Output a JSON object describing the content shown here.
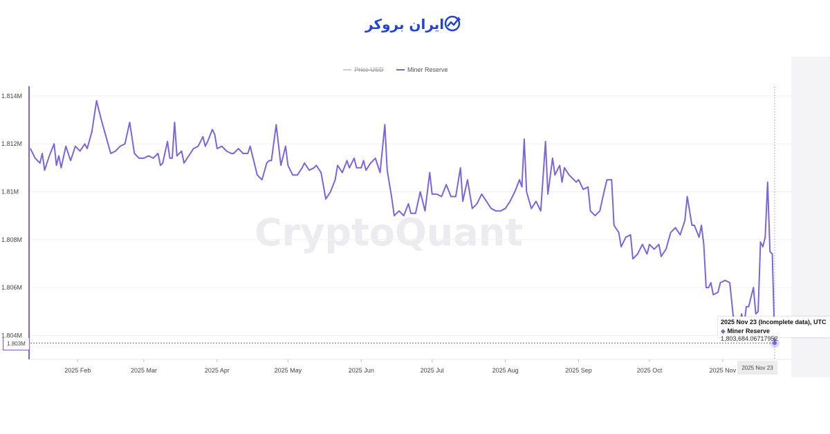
{
  "logo": {
    "text": "ایران بروکر",
    "brand_color": "#2343d6"
  },
  "watermark": "CryptoQuant",
  "legend": [
    {
      "name": "Price USD",
      "color": "#cccccc",
      "enabled": false
    },
    {
      "name": "Miner Reserve",
      "color": "#7b64dc",
      "enabled": true
    }
  ],
  "tooltip": {
    "title": "2025 Nov 23 (Incomplete data), UTC",
    "series_label": "Miner Reserve",
    "value": "1,803,684.06717952"
  },
  "crosshair": {
    "x_label": "2025 Nov 23",
    "y_label": "1.803M"
  },
  "chart_data": {
    "type": "line",
    "ylim": [
      1803000,
      1814400
    ],
    "y_ticks": [
      {
        "value": 1814000,
        "label": "1.814M"
      },
      {
        "value": 1812000,
        "label": "1.812M"
      },
      {
        "value": 1810000,
        "label": "1.81M"
      },
      {
        "value": 1808000,
        "label": "1.808M"
      },
      {
        "value": 1806000,
        "label": "1.806M"
      },
      {
        "value": 1804000,
        "label": "1.804M"
      }
    ],
    "x_range": [
      "2025-01-12",
      "2025-11-23"
    ],
    "x_ticks": [
      {
        "date": "2025-02-01",
        "label": "2025 Feb"
      },
      {
        "date": "2025-03-01",
        "label": "2025 Mar"
      },
      {
        "date": "2025-04-01",
        "label": "2025 Apr"
      },
      {
        "date": "2025-05-01",
        "label": "2025 May"
      },
      {
        "date": "2025-06-01",
        "label": "2025 Jun"
      },
      {
        "date": "2025-07-01",
        "label": "2025 Jul"
      },
      {
        "date": "2025-08-01",
        "label": "2025 Aug"
      },
      {
        "date": "2025-09-01",
        "label": "2025 Sep"
      },
      {
        "date": "2025-10-01",
        "label": "2025 Oct"
      },
      {
        "date": "2025-11-01",
        "label": "2025 Nov"
      }
    ],
    "series": [
      {
        "name": "Miner Reserve",
        "color": "#7b64dc",
        "points": [
          [
            "2025-01-12",
            1811800
          ],
          [
            "2025-01-14",
            1811400
          ],
          [
            "2025-01-16",
            1811200
          ],
          [
            "2025-01-17",
            1811600
          ],
          [
            "2025-01-18",
            1810900
          ],
          [
            "2025-01-20",
            1811500
          ],
          [
            "2025-01-22",
            1812000
          ],
          [
            "2025-01-23",
            1811100
          ],
          [
            "2025-01-24",
            1811500
          ],
          [
            "2025-01-25",
            1811000
          ],
          [
            "2025-01-27",
            1811900
          ],
          [
            "2025-01-29",
            1811300
          ],
          [
            "2025-01-31",
            1811900
          ],
          [
            "2025-02-02",
            1811700
          ],
          [
            "2025-02-04",
            1812000
          ],
          [
            "2025-02-05",
            1811800
          ],
          [
            "2025-02-07",
            1812500
          ],
          [
            "2025-02-09",
            1813800
          ],
          [
            "2025-02-11",
            1813000
          ],
          [
            "2025-02-13",
            1812300
          ],
          [
            "2025-02-15",
            1811600
          ],
          [
            "2025-02-17",
            1811700
          ],
          [
            "2025-02-19",
            1811900
          ],
          [
            "2025-02-21",
            1812000
          ],
          [
            "2025-02-23",
            1812900
          ],
          [
            "2025-02-25",
            1811600
          ],
          [
            "2025-02-27",
            1811400
          ],
          [
            "2025-03-01",
            1811400
          ],
          [
            "2025-03-03",
            1811500
          ],
          [
            "2025-03-05",
            1811400
          ],
          [
            "2025-03-07",
            1811600
          ],
          [
            "2025-03-08",
            1811100
          ],
          [
            "2025-03-09",
            1811200
          ],
          [
            "2025-03-11",
            1812100
          ],
          [
            "2025-03-12",
            1811400
          ],
          [
            "2025-03-13",
            1811400
          ],
          [
            "2025-03-14",
            1812900
          ],
          [
            "2025-03-15",
            1811500
          ],
          [
            "2025-03-17",
            1811700
          ],
          [
            "2025-03-18",
            1811200
          ],
          [
            "2025-03-20",
            1811500
          ],
          [
            "2025-03-22",
            1811800
          ],
          [
            "2025-03-24",
            1811900
          ],
          [
            "2025-03-26",
            1812300
          ],
          [
            "2025-03-27",
            1811900
          ],
          [
            "2025-03-28",
            1812100
          ],
          [
            "2025-03-30",
            1812600
          ],
          [
            "2025-03-31",
            1812400
          ],
          [
            "2025-04-01",
            1811800
          ],
          [
            "2025-04-03",
            1811900
          ],
          [
            "2025-04-05",
            1811700
          ],
          [
            "2025-04-07",
            1811600
          ],
          [
            "2025-04-08",
            1811600
          ],
          [
            "2025-04-10",
            1811800
          ],
          [
            "2025-04-12",
            1811600
          ],
          [
            "2025-04-14",
            1811600
          ],
          [
            "2025-04-15",
            1811900
          ],
          [
            "2025-04-16",
            1811500
          ],
          [
            "2025-04-18",
            1810700
          ],
          [
            "2025-04-20",
            1810500
          ],
          [
            "2025-04-22",
            1811200
          ],
          [
            "2025-04-23",
            1811300
          ],
          [
            "2025-04-24",
            1811300
          ],
          [
            "2025-04-26",
            1812800
          ],
          [
            "2025-04-28",
            1811100
          ],
          [
            "2025-04-30",
            1811900
          ],
          [
            "2025-05-01",
            1811100
          ],
          [
            "2025-05-03",
            1810700
          ],
          [
            "2025-05-05",
            1810700
          ],
          [
            "2025-05-07",
            1811000
          ],
          [
            "2025-05-08",
            1811200
          ],
          [
            "2025-05-10",
            1810900
          ],
          [
            "2025-05-12",
            1811000
          ],
          [
            "2025-05-13",
            1811100
          ],
          [
            "2025-05-15",
            1810800
          ],
          [
            "2025-05-17",
            1809700
          ],
          [
            "2025-05-19",
            1810000
          ],
          [
            "2025-05-21",
            1810500
          ],
          [
            "2025-05-22",
            1811100
          ],
          [
            "2025-05-24",
            1810800
          ],
          [
            "2025-05-26",
            1811300
          ],
          [
            "2025-05-27",
            1811000
          ],
          [
            "2025-05-29",
            1811400
          ],
          [
            "2025-05-30",
            1811000
          ],
          [
            "2025-06-01",
            1811000
          ],
          [
            "2025-06-02",
            1811300
          ],
          [
            "2025-06-03",
            1810900
          ],
          [
            "2025-06-05",
            1811200
          ],
          [
            "2025-06-07",
            1811400
          ],
          [
            "2025-06-09",
            1810800
          ],
          [
            "2025-06-11",
            1812800
          ],
          [
            "2025-06-12",
            1810900
          ],
          [
            "2025-06-14",
            1809700
          ],
          [
            "2025-06-15",
            1809000
          ],
          [
            "2025-06-17",
            1809200
          ],
          [
            "2025-06-19",
            1809000
          ],
          [
            "2025-06-21",
            1809500
          ],
          [
            "2025-06-22",
            1809100
          ],
          [
            "2025-06-24",
            1809100
          ],
          [
            "2025-06-26",
            1810000
          ],
          [
            "2025-06-28",
            1809200
          ],
          [
            "2025-06-30",
            1810800
          ],
          [
            "2025-07-01",
            1809900
          ],
          [
            "2025-07-03",
            1809900
          ],
          [
            "2025-07-05",
            1809800
          ],
          [
            "2025-07-07",
            1810300
          ],
          [
            "2025-07-09",
            1809800
          ],
          [
            "2025-07-11",
            1809800
          ],
          [
            "2025-07-13",
            1811000
          ],
          [
            "2025-07-14",
            1809600
          ],
          [
            "2025-07-16",
            1810500
          ],
          [
            "2025-07-18",
            1809300
          ],
          [
            "2025-07-20",
            1809500
          ],
          [
            "2025-07-22",
            1809900
          ],
          [
            "2025-07-24",
            1809600
          ],
          [
            "2025-07-26",
            1809300
          ],
          [
            "2025-07-28",
            1809200
          ],
          [
            "2025-07-30",
            1809200
          ],
          [
            "2025-08-01",
            1809300
          ],
          [
            "2025-08-03",
            1809600
          ],
          [
            "2025-08-05",
            1810000
          ],
          [
            "2025-08-07",
            1810500
          ],
          [
            "2025-08-08",
            1810200
          ],
          [
            "2025-08-09",
            1812200
          ],
          [
            "2025-08-10",
            1810000
          ],
          [
            "2025-08-12",
            1809300
          ],
          [
            "2025-08-14",
            1809600
          ],
          [
            "2025-08-16",
            1809200
          ],
          [
            "2025-08-18",
            1812100
          ],
          [
            "2025-08-19",
            1809900
          ],
          [
            "2025-08-21",
            1811400
          ],
          [
            "2025-08-22",
            1810700
          ],
          [
            "2025-08-24",
            1811100
          ],
          [
            "2025-08-25",
            1810400
          ],
          [
            "2025-08-26",
            1811000
          ],
          [
            "2025-08-28",
            1810700
          ],
          [
            "2025-08-30",
            1810500
          ],
          [
            "2025-08-31",
            1810400
          ],
          [
            "2025-09-01",
            1810500
          ],
          [
            "2025-09-03",
            1810100
          ],
          [
            "2025-09-05",
            1810200
          ],
          [
            "2025-09-06",
            1809200
          ],
          [
            "2025-09-08",
            1809000
          ],
          [
            "2025-09-10",
            1809200
          ],
          [
            "2025-09-12",
            1810100
          ],
          [
            "2025-09-13",
            1810500
          ],
          [
            "2025-09-15",
            1810500
          ],
          [
            "2025-09-16",
            1808600
          ],
          [
            "2025-09-18",
            1808300
          ],
          [
            "2025-09-19",
            1807700
          ],
          [
            "2025-09-21",
            1808100
          ],
          [
            "2025-09-23",
            1808200
          ],
          [
            "2025-09-24",
            1807200
          ],
          [
            "2025-09-26",
            1807400
          ],
          [
            "2025-09-28",
            1807800
          ],
          [
            "2025-09-30",
            1807400
          ],
          [
            "2025-10-01",
            1807800
          ],
          [
            "2025-10-03",
            1807600
          ],
          [
            "2025-10-05",
            1807800
          ],
          [
            "2025-10-06",
            1807300
          ],
          [
            "2025-10-08",
            1807600
          ],
          [
            "2025-10-10",
            1808300
          ],
          [
            "2025-10-12",
            1808500
          ],
          [
            "2025-10-14",
            1808200
          ],
          [
            "2025-10-16",
            1808800
          ],
          [
            "2025-10-17",
            1809800
          ],
          [
            "2025-10-19",
            1808600
          ],
          [
            "2025-10-20",
            1808600
          ],
          [
            "2025-10-22",
            1808100
          ],
          [
            "2025-10-23",
            1808600
          ],
          [
            "2025-10-24",
            1807800
          ],
          [
            "2025-10-25",
            1806000
          ],
          [
            "2025-10-26",
            1806000
          ],
          [
            "2025-10-27",
            1806200
          ],
          [
            "2025-10-28",
            1805700
          ],
          [
            "2025-10-30",
            1805800
          ],
          [
            "2025-10-31",
            1806200
          ],
          [
            "2025-11-02",
            1806300
          ],
          [
            "2025-11-04",
            1806200
          ],
          [
            "2025-11-06",
            1804300
          ],
          [
            "2025-11-08",
            1804300
          ],
          [
            "2025-11-09",
            1804900
          ],
          [
            "2025-11-10",
            1804400
          ],
          [
            "2025-11-11",
            1805200
          ],
          [
            "2025-11-12",
            1805200
          ],
          [
            "2025-11-13",
            1805600
          ],
          [
            "2025-11-14",
            1806000
          ],
          [
            "2025-11-15",
            1804900
          ],
          [
            "2025-11-16",
            1805000
          ],
          [
            "2025-11-17",
            1807900
          ],
          [
            "2025-11-18",
            1807700
          ],
          [
            "2025-11-19",
            1808100
          ],
          [
            "2025-11-20",
            1810400
          ],
          [
            "2025-11-21",
            1807500
          ],
          [
            "2025-11-22",
            1807400
          ],
          [
            "2025-11-23",
            1803684
          ]
        ]
      }
    ]
  }
}
